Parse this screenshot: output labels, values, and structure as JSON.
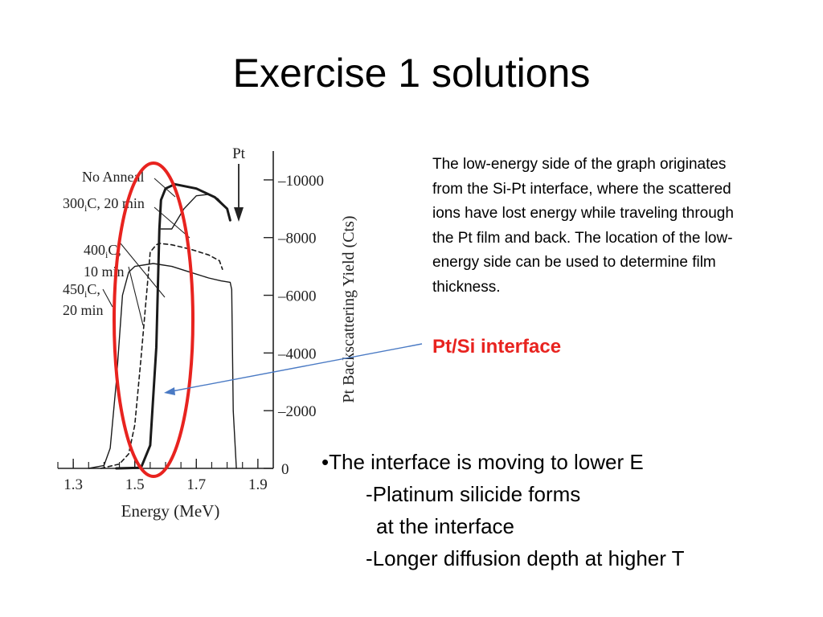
{
  "slide": {
    "title": "Exercise 1 solutions",
    "description": "The low-energy side of the graph originates from the Si-Pt interface, where the scattered ions have lost energy while traveling through the Pt film and back. The location of the low-energy side can be used to determine film thickness.",
    "interface_label": "Pt/Si interface",
    "bullets": {
      "main": "•The interface is moving to lower E",
      "sub1": "-Platinum silicide forms",
      "sub1_cont": "at the interface",
      "sub2": "-Longer diffusion depth at higher T"
    },
    "colors": {
      "highlight_ellipse": "#e8231f",
      "arrow": "#4a7ac4",
      "interface_label": "#e8231f"
    }
  },
  "chart_data": {
    "type": "line",
    "xlabel": "Energy (MeV)",
    "ylabel": "Pt Backscattering Yield (Cts)",
    "xlim": [
      1.25,
      1.95
    ],
    "ylim": [
      0,
      11000
    ],
    "x_ticks": [
      1.3,
      1.5,
      1.7,
      1.9
    ],
    "x_tick_labels": [
      "1.3",
      "1.5",
      "1.7",
      "1.9"
    ],
    "y_ticks": [
      0,
      2000,
      4000,
      6000,
      8000,
      10000
    ],
    "y_tick_labels": [
      "0",
      "2000",
      "4000",
      "6000",
      "8000",
      "10000"
    ],
    "pt_marker": {
      "label": "Pt",
      "x": 1.81
    },
    "series": [
      {
        "name": "No Anneal",
        "style": "thick",
        "x": [
          1.44,
          1.52,
          1.55,
          1.57,
          1.58,
          1.585,
          1.6,
          1.63,
          1.7,
          1.76,
          1.8,
          1.81
        ],
        "y": [
          0,
          20,
          800,
          4200,
          8300,
          9300,
          9700,
          9850,
          9700,
          9400,
          9000,
          8600
        ]
      },
      {
        "name": "300 C, 20 min",
        "style": "thin",
        "x": [
          1.585,
          1.62,
          1.66,
          1.7,
          1.74,
          1.77,
          1.8,
          1.81
        ],
        "y": [
          8300,
          8300,
          9000,
          9450,
          9500,
          9350,
          9000,
          8600
        ]
      },
      {
        "name": "400 C, 10 min",
        "style": "dashed",
        "x": [
          1.39,
          1.45,
          1.48,
          1.5,
          1.52,
          1.55,
          1.57,
          1.58,
          1.62,
          1.68,
          1.74,
          1.775,
          1.785
        ],
        "y": [
          0,
          150,
          500,
          1500,
          3800,
          7500,
          7750,
          7800,
          7750,
          7600,
          7400,
          7200,
          6900
        ]
      },
      {
        "name": "450 C, 20 min",
        "style": "thin",
        "x": [
          1.35,
          1.4,
          1.42,
          1.44,
          1.46,
          1.48,
          1.5,
          1.56,
          1.62,
          1.68,
          1.74,
          1.78,
          1.81,
          1.815,
          1.82,
          1.83
        ],
        "y": [
          0,
          100,
          700,
          3000,
          6000,
          6800,
          7000,
          7100,
          7000,
          6800,
          6600,
          6500,
          6450,
          6200,
          2000,
          0
        ]
      }
    ],
    "annotations": [
      {
        "text": "No Anneal"
      },
      {
        "text": "300",
        "sub": "i",
        "text2": "C, 20 min"
      },
      {
        "text": "400",
        "sub": "i",
        "text2": "C,"
      },
      {
        "text": "10 min"
      },
      {
        "text": "450",
        "sub": "i",
        "text2": "C,"
      },
      {
        "text": "20 min"
      }
    ]
  }
}
